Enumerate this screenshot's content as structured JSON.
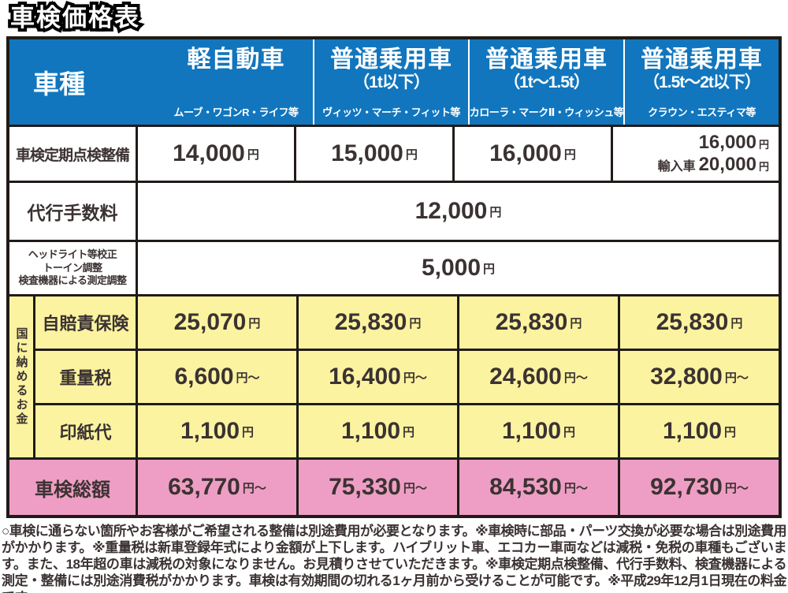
{
  "title": "車検価格表",
  "colors": {
    "header_blue": "#1176be",
    "section_yellow": "#fbf3a0",
    "total_pink": "#ee9ec4",
    "ink": "#3b3232",
    "border": "#201b18"
  },
  "header": {
    "vehicle_type_label": "車種",
    "columns": [
      {
        "name": "軽自動車",
        "capacity": "",
        "examples": "ムーブ・ワゴンR・ライフ等"
      },
      {
        "name": "普通乗用車",
        "capacity": "（1t以下）",
        "examples": "ヴィッツ・マーチ・フィット等"
      },
      {
        "name": "普通乗用車",
        "capacity": "（1t～1.5t）",
        "examples": "カローラ・マークⅡ・ウィッシュ等"
      },
      {
        "name": "普通乗用車",
        "capacity": "（1.5t～2t以下）",
        "examples": "クラウン・エスティマ等"
      }
    ]
  },
  "rows": {
    "periodic_inspection": {
      "label": "車検定期点検整備",
      "values": [
        "14,000",
        "15,000",
        "16,000",
        "16,000"
      ],
      "unit": "円",
      "import_note": {
        "prefix": "輸入車",
        "value": "20,000",
        "unit": "円"
      }
    },
    "agency_fee": {
      "label": "代行手数料",
      "value": "12,000",
      "unit": "円"
    },
    "calibration": {
      "label_line1": "ヘッドライト等校正",
      "label_line2": "トーイン調整",
      "label_line3": "検査機器による測定調整",
      "value": "5,000",
      "unit": "円"
    },
    "government_group_label": "国に納めるお金",
    "liability_insurance": {
      "label": "自賠責保険",
      "values": [
        "25,070",
        "25,830",
        "25,830",
        "25,830"
      ],
      "unit": "円"
    },
    "weight_tax": {
      "label": "重量税",
      "values": [
        "6,600",
        "16,400",
        "24,600",
        "32,800"
      ],
      "unit": "円～"
    },
    "stamp_fee": {
      "label": "印紙代",
      "values": [
        "1,100",
        "1,100",
        "1,100",
        "1,100"
      ],
      "unit": "円"
    },
    "total": {
      "label": "車検総額",
      "values": [
        "63,770",
        "75,330",
        "84,530",
        "92,730"
      ],
      "unit": "円～"
    }
  },
  "footnote": "○車検に通らない箇所やお客様がご希望される整備は別途費用が必要となります。※車検時に部品・パーツ交換が必要な場合は別途費用がかかります。※重量税は新車登録年式により金額が上下します。ハイブリット車、エコカー車両などは減税・免税の車種もございます。また、18年超の車は減税の対象になりません。お見積りさせていただきます。※車検定期点検整備、代行手数料、検査機器による測定・整備には別途消費税がかかります。車検は有効期間の切れる1ヶ月前から受けることが可能です。※平成29年12月1日現在の料金です。"
}
